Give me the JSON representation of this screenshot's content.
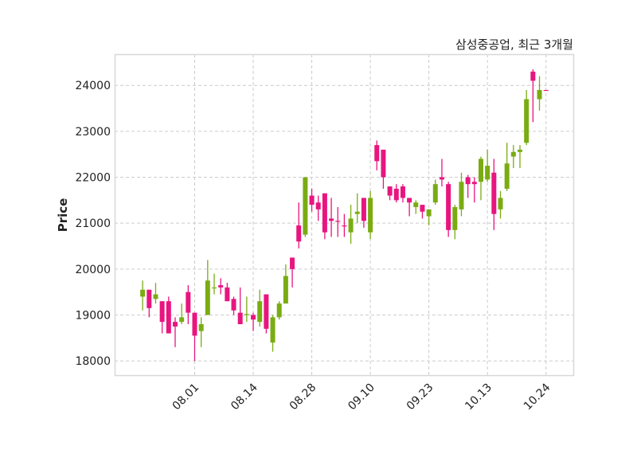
{
  "chart_data": {
    "type": "candlestick",
    "title": "삼성중공업, 최근 3개월",
    "xlabel": "",
    "ylabel": "Price",
    "ylim": [
      17690,
      24680
    ],
    "xlim": [
      -4.3,
      66.2
    ],
    "grid": true,
    "colors": {
      "up": "#e8157f",
      "down": "#7aac12",
      "grid": "#cccccc",
      "frame": "#d8d8d8"
    },
    "yticks": [
      18000,
      19000,
      20000,
      21000,
      22000,
      23000,
      24000
    ],
    "ytick_labels": [
      "18000",
      "19000",
      "20000",
      "21000",
      "22000",
      "23000",
      "24000"
    ],
    "xticks": [
      8,
      17,
      26,
      35,
      44,
      53,
      62
    ],
    "xtick_labels": [
      "08.01",
      "08.14",
      "08.28",
      "09.10",
      "09.23",
      "10.13",
      "10.24"
    ],
    "ohlc_fields": [
      "open",
      "high",
      "low",
      "close"
    ],
    "ohlc": [
      [
        19550,
        19750,
        19100,
        19400
      ],
      [
        19150,
        19550,
        18950,
        19550
      ],
      [
        19450,
        19700,
        19250,
        19350
      ],
      [
        18850,
        19300,
        18600,
        19300
      ],
      [
        18600,
        19400,
        18600,
        19300
      ],
      [
        18750,
        18950,
        18300,
        18850
      ],
      [
        18950,
        19250,
        18800,
        18850
      ],
      [
        19050,
        19650,
        18800,
        19500
      ],
      [
        18550,
        19050,
        18000,
        19050
      ],
      [
        18800,
        18950,
        18300,
        18650
      ],
      [
        19750,
        20200,
        19000,
        19000
      ],
      [
        19600,
        19900,
        19450,
        19580
      ],
      [
        19600,
        19800,
        19450,
        19650
      ],
      [
        19300,
        19700,
        19300,
        19600
      ],
      [
        19100,
        19400,
        19000,
        19350
      ],
      [
        18800,
        19600,
        18800,
        19050
      ],
      [
        19020,
        19400,
        18850,
        19000
      ],
      [
        18900,
        19050,
        18650,
        19000
      ],
      [
        19300,
        19550,
        18750,
        18850
      ],
      [
        18700,
        19450,
        18600,
        19450
      ],
      [
        18950,
        19000,
        18200,
        18400
      ],
      [
        19250,
        19300,
        18900,
        18950
      ],
      [
        19850,
        20100,
        19250,
        19250
      ],
      [
        20000,
        20250,
        19600,
        20250
      ],
      [
        20600,
        21450,
        20450,
        20950
      ],
      [
        22000,
        22000,
        20700,
        20750
      ],
      [
        21400,
        21750,
        21250,
        21600
      ],
      [
        21300,
        21600,
        21050,
        21450
      ],
      [
        20800,
        21650,
        20650,
        21650
      ],
      [
        21050,
        21550,
        20700,
        21100
      ],
      [
        21050,
        21350,
        20700,
        21050
      ],
      [
        20950,
        21200,
        20700,
        20950
      ],
      [
        21100,
        21400,
        20550,
        20800
      ],
      [
        21250,
        21650,
        21000,
        21200
      ],
      [
        21050,
        21550,
        20900,
        21550
      ],
      [
        21550,
        21700,
        20650,
        20800
      ],
      [
        22350,
        22800,
        22150,
        22700
      ],
      [
        22000,
        22600,
        21750,
        22600
      ],
      [
        21600,
        21800,
        21500,
        21800
      ],
      [
        21500,
        21850,
        21450,
        21750
      ],
      [
        21550,
        21850,
        21450,
        21800
      ],
      [
        21450,
        21550,
        21150,
        21550
      ],
      [
        21450,
        21500,
        21200,
        21350
      ],
      [
        21250,
        21400,
        21100,
        21400
      ],
      [
        21300,
        21300,
        20950,
        21150
      ],
      [
        21850,
        21950,
        21400,
        21450
      ],
      [
        21950,
        22400,
        21800,
        22000
      ],
      [
        20850,
        21900,
        20700,
        21850
      ],
      [
        21350,
        21400,
        20650,
        20850
      ],
      [
        21900,
        22100,
        21150,
        21300
      ],
      [
        21850,
        22050,
        21550,
        22000
      ],
      [
        21850,
        22000,
        21450,
        21900
      ],
      [
        22400,
        22450,
        21500,
        21900
      ],
      [
        22250,
        22600,
        21900,
        21950
      ],
      [
        21200,
        22400,
        20850,
        22100
      ],
      [
        21550,
        21700,
        21100,
        21300
      ],
      [
        22300,
        22750,
        21700,
        21750
      ],
      [
        22550,
        22700,
        22200,
        22450
      ],
      [
        22600,
        22700,
        22200,
        22550
      ],
      [
        23700,
        23900,
        22700,
        22750
      ],
      [
        24100,
        24350,
        23200,
        24300
      ],
      [
        23900,
        24200,
        23450,
        23700
      ],
      [
        23900,
        23900,
        23900,
        23900
      ]
    ]
  }
}
